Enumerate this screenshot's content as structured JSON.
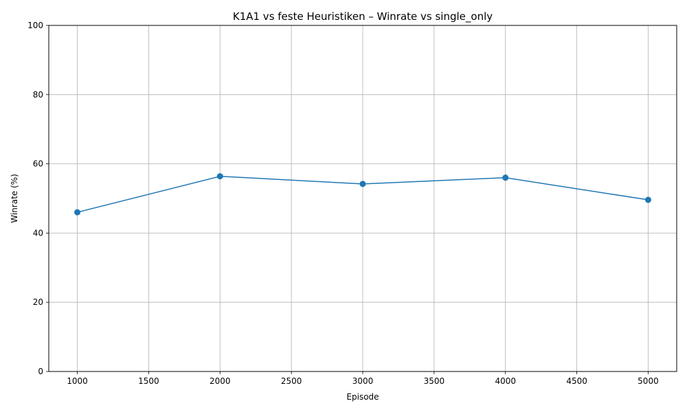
{
  "chart_data": {
    "type": "line",
    "title": "K1A1 vs feste Heuristiken – Winrate vs single_only",
    "xlabel": "Episode",
    "ylabel": "Winrate (%)",
    "xlim": [
      800,
      5200
    ],
    "ylim": [
      0,
      100
    ],
    "x_ticks": [
      1000,
      1500,
      2000,
      2500,
      3000,
      3500,
      4000,
      4500,
      5000
    ],
    "y_ticks": [
      0,
      20,
      40,
      60,
      80,
      100
    ],
    "grid": true,
    "series": [
      {
        "x": [
          1000,
          2000,
          3000,
          4000,
          5000
        ],
        "values": [
          46.0,
          56.4,
          54.2,
          56.0,
          49.6
        ],
        "color": "#1f77b4",
        "marker": "circle"
      }
    ]
  }
}
